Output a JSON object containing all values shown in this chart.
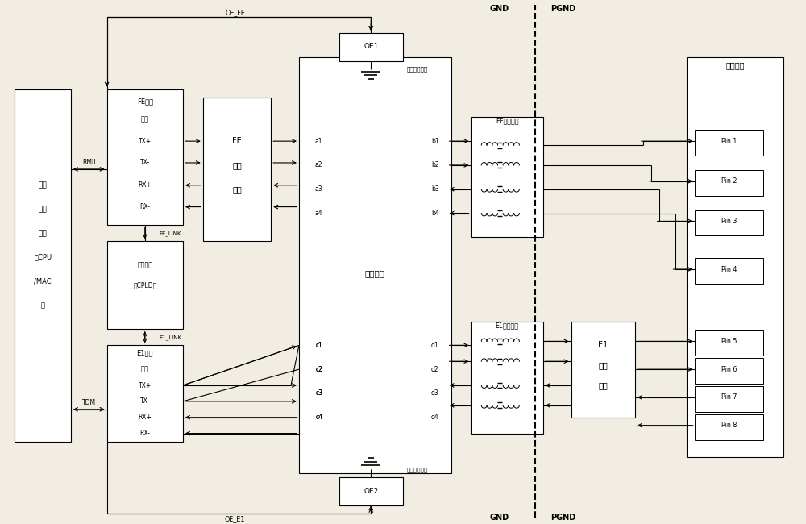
{
  "bg_color": "#f2ede3",
  "fig_width": 10.0,
  "fig_height": 6.5,
  "dpi": 100,
  "xlim": [
    0,
    100
  ],
  "ylim": [
    0,
    65
  ]
}
